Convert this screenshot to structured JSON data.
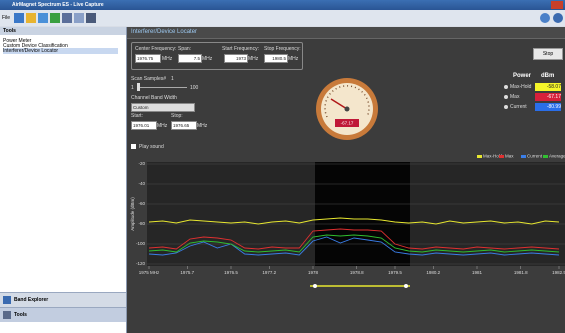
{
  "window": {
    "title": "AirMagnet Spectrum ES - Live Capture",
    "menu": "File"
  },
  "sidebar": {
    "title": "Tools",
    "items": [
      "Power Meter",
      "Custom Device Classification",
      "Interferer/Device Locator"
    ],
    "nav": [
      "Band Explorer",
      "Tools"
    ]
  },
  "panel": {
    "title": "Interferer/Device Locater",
    "fields": [
      {
        "label": "Center Frequency:",
        "value": "1976.75",
        "unit": "MHz"
      },
      {
        "label": "Span:",
        "value": "7.5",
        "unit": "MHz"
      },
      {
        "label": "Start Frequency:",
        "value": "1973",
        "unit": "MHz"
      },
      {
        "label": "Stop Frequency:",
        "value": "1980.5",
        "unit": "MHz"
      }
    ],
    "stop_button": "Stop",
    "scan": {
      "label": "Scan Samples#",
      "value": "1",
      "min": "1",
      "max": "100"
    },
    "channel": {
      "label": "Channel Band Width",
      "mode": "Custom",
      "start_label": "Start:",
      "start": "1976.01",
      "stop_label": "Stop:",
      "stop": "1976.65",
      "unit": "MHz"
    },
    "gauge_reading": "-67.17",
    "power": {
      "title": "Power",
      "unit": "dBm",
      "rows": [
        {
          "label": "Max-Hold",
          "value": "-58.07",
          "color": "#f5f52a"
        },
        {
          "label": "Max",
          "value": "-67.17",
          "color": "#d8203a"
        },
        {
          "label": "Current",
          "value": "-80.99",
          "color": "#2a6ee8"
        }
      ]
    },
    "play_sound": "Play sound"
  },
  "spectrum": {
    "y_label": "Amplitude (dBm)",
    "x": [
      1975,
      1975.25,
      1975.5,
      1975.75,
      1976,
      1976.25,
      1976.5,
      1976.75,
      1977,
      1977.25,
      1977.5,
      1977.75,
      1978,
      1978.25,
      1978.5,
      1978.75,
      1979,
      1979.25,
      1979.5,
      1979.75,
      1980,
      1980.25,
      1980.5,
      1980.75,
      1981,
      1981.25,
      1981.5,
      1981.75,
      1982,
      1982.25,
      1982.5
    ],
    "xlim": [
      1975,
      1982.5
    ],
    "xticks": [
      {
        "value": 1975,
        "label": "1975 MHz"
      },
      1975.7,
      1976.5,
      1977.2,
      1978,
      1978.8,
      1979.5,
      1980.2,
      1981,
      1981.8,
      1982.5
    ],
    "ylim": [
      -120,
      -20
    ],
    "yticks": [
      -20,
      -40,
      -60,
      -80,
      -100,
      -120
    ],
    "series": [
      {
        "name": "Max-Hold",
        "color": "#e8e830",
        "values": [
          -78,
          -77,
          -79,
          -76,
          -77,
          -78,
          -79,
          -78,
          -80,
          -78,
          -77,
          -79,
          -76,
          -75,
          -74,
          -75,
          -75,
          -76,
          -78,
          -79,
          -78,
          -80,
          -77,
          -79,
          -78,
          -77,
          -79,
          -78,
          -80,
          -77,
          -78
        ]
      },
      {
        "name": "Max",
        "color": "#e03030",
        "values": [
          -104,
          -103,
          -105,
          -95,
          -93,
          -94,
          -96,
          -104,
          -105,
          -103,
          -104,
          -104,
          -87,
          -86,
          -85,
          -86,
          -86,
          -87,
          -100,
          -104,
          -105,
          -103,
          -104,
          -105,
          -103,
          -104,
          -105,
          -104,
          -103,
          -104,
          -105
        ]
      },
      {
        "name": "Current",
        "color": "#3a7ee8",
        "values": [
          -110,
          -111,
          -109,
          -102,
          -98,
          -104,
          -100,
          -110,
          -111,
          -110,
          -109,
          -111,
          -97,
          -93,
          -99,
          -94,
          -96,
          -98,
          -108,
          -110,
          -111,
          -109,
          -110,
          -111,
          -110,
          -109,
          -111,
          -110,
          -109,
          -110,
          -111
        ]
      },
      {
        "name": "Average",
        "color": "#30c030",
        "values": [
          -107,
          -106,
          -108,
          -99,
          -97,
          -98,
          -100,
          -107,
          -108,
          -107,
          -106,
          -108,
          -93,
          -91,
          -92,
          -91,
          -92,
          -94,
          -104,
          -107,
          -108,
          -106,
          -107,
          -108,
          -107,
          -106,
          -108,
          -107,
          -106,
          -107,
          -108
        ]
      }
    ]
  }
}
